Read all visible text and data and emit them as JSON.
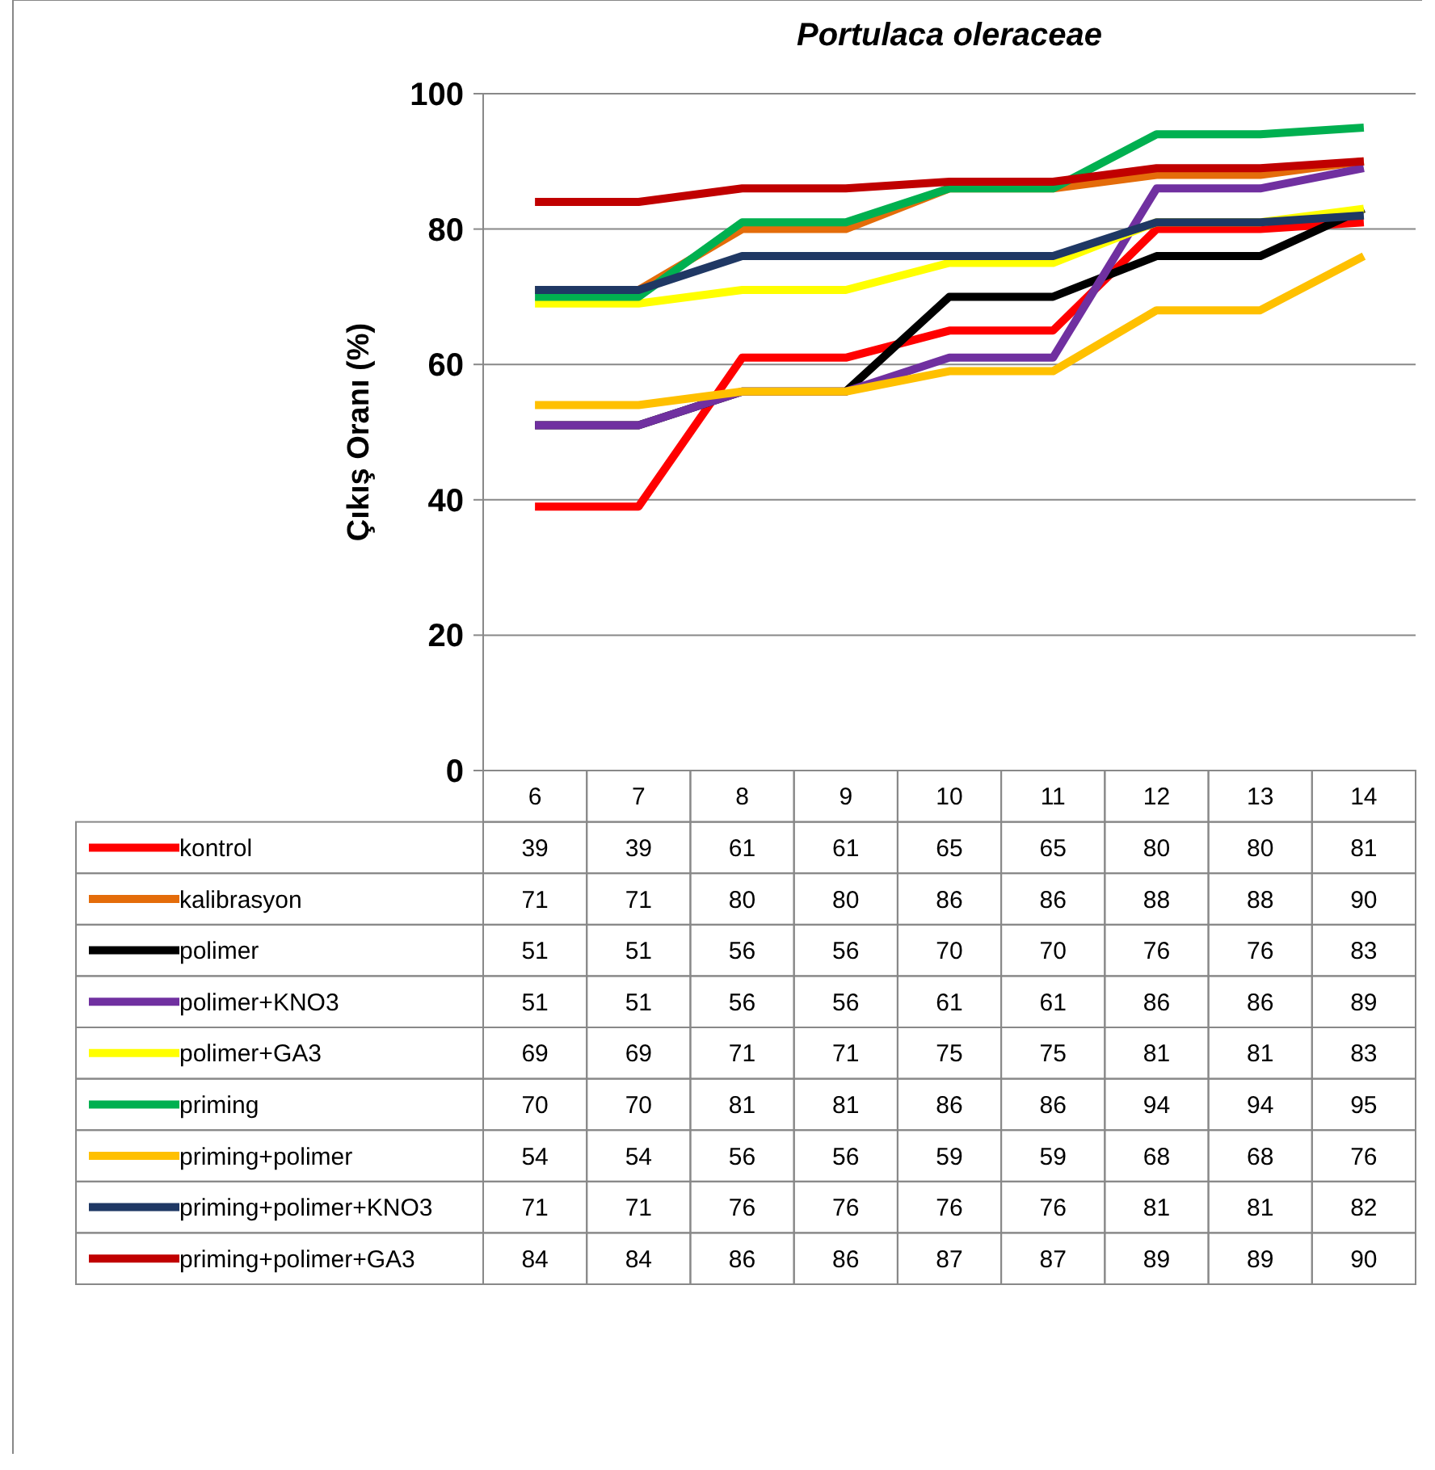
{
  "chart_data": {
    "type": "line",
    "title": "Portulaca oleraceae",
    "ylabel": "Çıkış Oranı (%)",
    "categories": [
      "6",
      "7",
      "8",
      "9",
      "10",
      "11",
      "12",
      "13",
      "14"
    ],
    "ylim": [
      0,
      100
    ],
    "yticks": [
      0,
      20,
      40,
      60,
      80,
      100
    ],
    "grid": "y",
    "legend": "bottom",
    "data_labels": true,
    "marker": "none",
    "line_style": "solid",
    "series": [
      {
        "name": "kontrol",
        "color": "#ff0000",
        "values": [
          39,
          39,
          61,
          61,
          65,
          65,
          80,
          80,
          81
        ]
      },
      {
        "name": "kalibrasyon",
        "color": "#e46c0a",
        "values": [
          71,
          71,
          80,
          80,
          86,
          86,
          88,
          88,
          90
        ]
      },
      {
        "name": "polimer",
        "color": "#000000",
        "values": [
          51,
          51,
          56,
          56,
          70,
          70,
          76,
          76,
          83
        ]
      },
      {
        "name": "polimer+KNO3",
        "color": "#7030a0",
        "values": [
          51,
          51,
          56,
          56,
          61,
          61,
          86,
          86,
          89
        ]
      },
      {
        "name": "polimer+GA3",
        "color": "#ffff00",
        "values": [
          69,
          69,
          71,
          71,
          75,
          75,
          81,
          81,
          83
        ]
      },
      {
        "name": "priming",
        "color": "#00b050",
        "values": [
          70,
          70,
          81,
          81,
          86,
          86,
          94,
          94,
          95
        ]
      },
      {
        "name": "priming+polimer",
        "color": "#ffc000",
        "values": [
          54,
          54,
          56,
          56,
          59,
          59,
          68,
          68,
          76
        ]
      },
      {
        "name": "priming+polimer+KNO3",
        "color": "#1f3864",
        "values": [
          71,
          71,
          76,
          76,
          76,
          76,
          81,
          81,
          82
        ]
      },
      {
        "name": "priming+polimer+GA3",
        "color": "#c00000",
        "values": [
          84,
          84,
          86,
          86,
          87,
          87,
          89,
          89,
          90
        ]
      }
    ]
  }
}
